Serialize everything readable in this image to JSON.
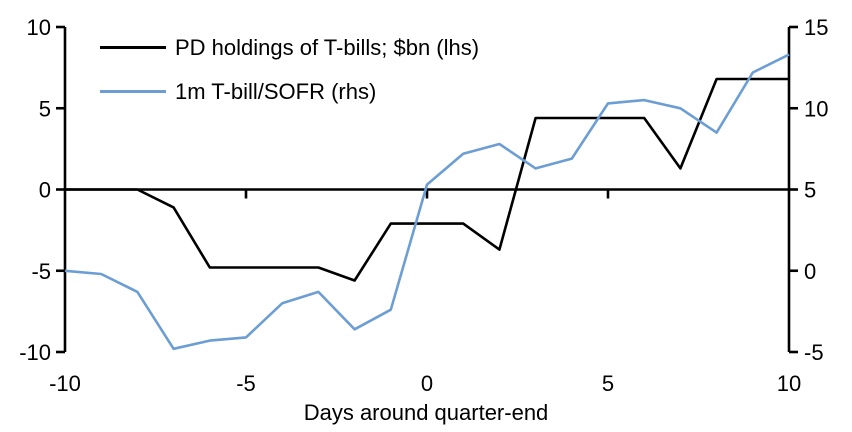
{
  "chart_data": {
    "type": "line",
    "title": "",
    "xlabel": "Days around quarter-end",
    "grid": false,
    "legend_position": "top-left-inside",
    "background_color": "#ffffff",
    "axis_color": "#000000",
    "text_color": "#000000",
    "x": [
      -10,
      -9,
      -8,
      -7,
      -6,
      -5,
      -4,
      -3,
      -2,
      -1,
      0,
      1,
      2,
      3,
      4,
      5,
      6,
      7,
      8,
      9,
      10
    ],
    "series": [
      {
        "name": "PD holdings of T-bills; $bn (lhs)",
        "axis": "left",
        "color": "#000000",
        "values": [
          0,
          0,
          0,
          -1.1,
          -4.8,
          -4.8,
          -4.8,
          -4.8,
          -5.6,
          -2.1,
          -2.1,
          -2.1,
          -3.7,
          4.4,
          4.4,
          4.4,
          4.4,
          1.3,
          6.8,
          6.8,
          6.8
        ]
      },
      {
        "name": "1m T-bill/SOFR (rhs)",
        "axis": "right",
        "color": "#6C9ED4",
        "values": [
          0.0,
          -0.2,
          -1.3,
          -4.8,
          -4.3,
          -4.1,
          -2.0,
          -1.3,
          -3.6,
          -2.4,
          5.3,
          7.2,
          7.8,
          6.3,
          6.9,
          10.3,
          10.5,
          10.0,
          8.5,
          12.2,
          13.3
        ]
      }
    ],
    "axes": {
      "left": {
        "min": -10,
        "max": 10,
        "ticks": [
          10,
          5,
          0,
          -5,
          -10
        ]
      },
      "right": {
        "min": -5,
        "max": 15,
        "ticks": [
          15,
          10,
          5,
          0,
          -5
        ]
      },
      "x": {
        "min": -10,
        "max": 10,
        "labeled_ticks": [
          -10,
          -5,
          0,
          5,
          10
        ],
        "inner_ticks": [
          -5,
          0,
          5
        ]
      }
    }
  }
}
